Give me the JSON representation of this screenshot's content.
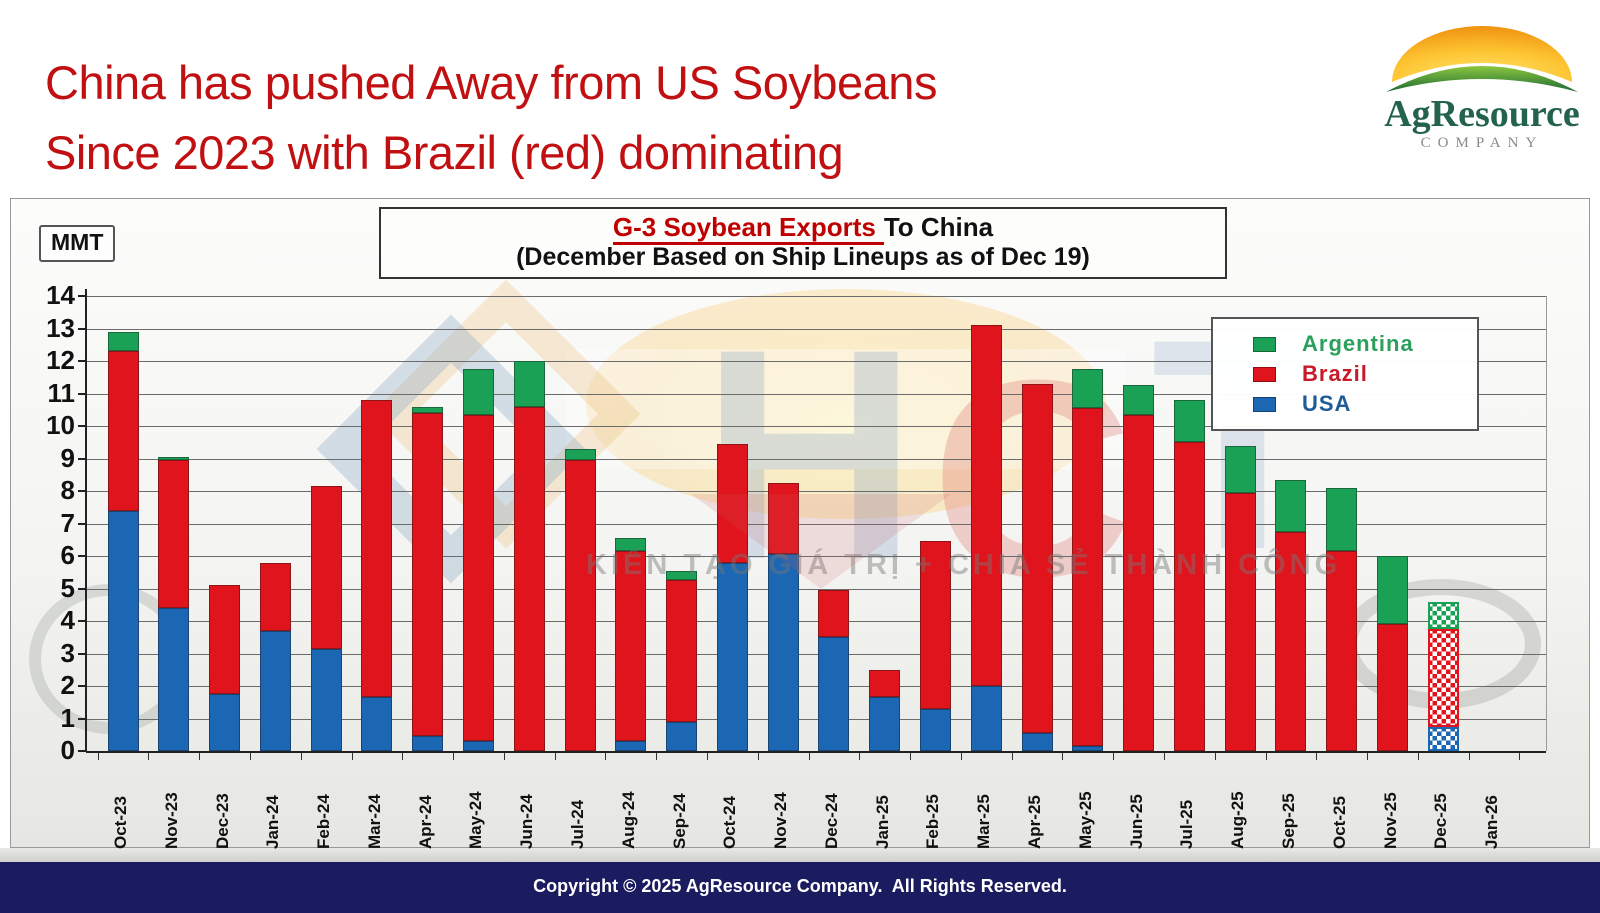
{
  "slide": {
    "title_line1": "China has pushed Away from US Soybeans",
    "title_line2": "Since 2023 with Brazil (red) dominating",
    "title_color": "#c11012"
  },
  "logo": {
    "name": "AgResource",
    "subtext": "COMPANY"
  },
  "watermark": {
    "letters": {
      "h": "H",
      "c": "C",
      "t": "T"
    },
    "slogan": "KIẾN TẠO GIÁ TRỊ + CHIA SẺ THÀNH CÔNG"
  },
  "chart_data": {
    "type": "bar",
    "stacked": true,
    "title_highlight": "G-3 Soybean Exports",
    "title_rest": "To China",
    "subtitle": "(December Based on Ship Lineups as of Dec 19)",
    "unit_label": "MMT",
    "ylim": [
      0,
      14
    ],
    "ytick_step": 1,
    "grid": true,
    "legend_position": "top-right",
    "legend_entries": [
      {
        "label": "Argentina",
        "color": "#1ba155",
        "text_color": "#2b9f5c"
      },
      {
        "label": "Brazil",
        "color": "#e0141c",
        "text_color": "#c81a28"
      },
      {
        "label": "USA",
        "color": "#1b67b3",
        "text_color": "#1f5b96"
      }
    ],
    "categories": [
      "Oct-23",
      "Nov-23",
      "Dec-23",
      "Jan-24",
      "Feb-24",
      "Mar-24",
      "Apr-24",
      "May-24",
      "Jun-24",
      "Jul-24",
      "Aug-24",
      "Sep-24",
      "Oct-24",
      "Nov-24",
      "Dec-24",
      "Jan-25",
      "Feb-25",
      "Mar-25",
      "Apr-25",
      "May-25",
      "Jun-25",
      "Jul-25",
      "Aug-25",
      "Sep-25",
      "Oct-25",
      "Nov-25",
      "Dec-25",
      "Jan-26"
    ],
    "series": [
      {
        "name": "USA",
        "color": "#1b67b3",
        "values": [
          7.4,
          4.4,
          1.75,
          3.7,
          3.15,
          1.65,
          0.45,
          0.3,
          0,
          0,
          0.3,
          0.9,
          5.8,
          6.05,
          3.5,
          1.65,
          1.3,
          2.0,
          0.55,
          0.15,
          0,
          0,
          0,
          0,
          0,
          0,
          0.75,
          0
        ]
      },
      {
        "name": "Brazil",
        "color": "#e0141c",
        "values": [
          4.9,
          4.55,
          3.35,
          2.1,
          5.0,
          9.15,
          9.95,
          10.05,
          10.6,
          8.95,
          5.85,
          4.35,
          3.65,
          2.2,
          1.45,
          0.85,
          5.15,
          11.1,
          10.75,
          10.4,
          10.35,
          9.5,
          7.95,
          6.75,
          6.15,
          3.9,
          3.0,
          0
        ]
      },
      {
        "name": "Argentina",
        "color": "#1ba155",
        "values": [
          0.6,
          0.1,
          0,
          0,
          0,
          0,
          0.2,
          1.4,
          1.4,
          0.35,
          0.4,
          0.3,
          0,
          0,
          0,
          0,
          0,
          0,
          0,
          1.2,
          0.9,
          1.3,
          1.45,
          1.6,
          1.95,
          2.1,
          0.85,
          0
        ]
      }
    ],
    "forecast_category": "Dec-25",
    "forecast_style": "checkered-hatch"
  },
  "footer": {
    "text": "Copyright © 2025 AgResource Company.  All Rights Reserved."
  }
}
